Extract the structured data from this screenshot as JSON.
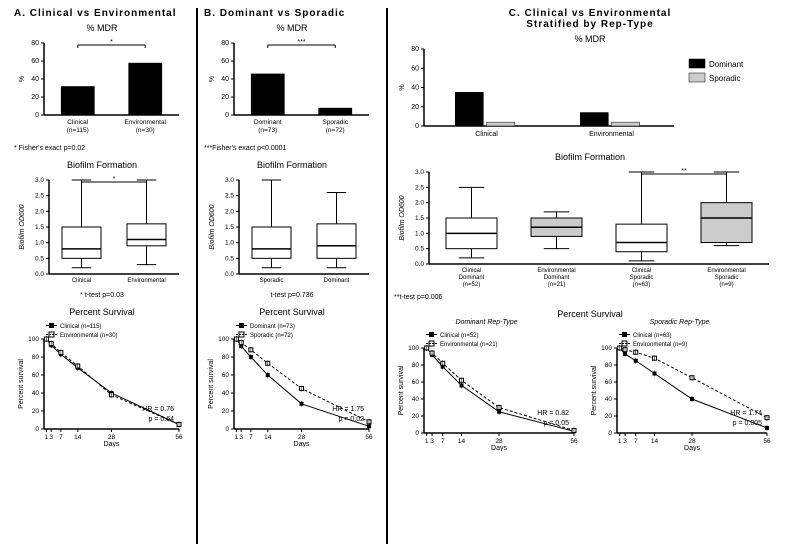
{
  "panelA": {
    "title": "A. Clinical vs Environmental",
    "mdr": {
      "title": "% MDR",
      "ylabel": "%",
      "ylim": [
        0,
        80
      ],
      "ytick": 20,
      "categories": [
        "Clinical\n(n=115)",
        "Environmental\n(n=30)"
      ],
      "values": [
        32,
        58
      ],
      "bar_color": "#000000",
      "sig_label": "*",
      "footnote": "* Fisher's exact p=0.02"
    },
    "biofilm": {
      "title": "Biofilm Formation",
      "ylabel": "Biofilm OD600",
      "ytick_labels": [
        "0.0",
        "0.5",
        "1.0",
        "1.5",
        "2.0",
        "2.5",
        "3.0"
      ],
      "ylim": [
        0,
        3
      ],
      "categories": [
        "Clinical",
        "Environmental"
      ],
      "boxes": [
        {
          "min": 0.2,
          "q1": 0.5,
          "med": 0.8,
          "q3": 1.5,
          "max": 3.0,
          "fill": "#ffffff"
        },
        {
          "min": 0.3,
          "q1": 0.9,
          "med": 1.1,
          "q3": 1.6,
          "max": 3.0,
          "fill": "#ffffff"
        }
      ],
      "sig_label": "*",
      "footnote": "* t-test p=0.03"
    },
    "survival": {
      "title": "Percent Survival",
      "xlabel": "Days",
      "ylabel": "Percent survival",
      "xticks": [
        1,
        3,
        7,
        14,
        28,
        56
      ],
      "yticks": [
        0,
        20,
        40,
        60,
        80,
        100
      ],
      "series": [
        {
          "name": "Clinical (n=115)",
          "marker": "filled",
          "dash": "solid",
          "pts": [
            [
              1,
              100
            ],
            [
              3,
              93
            ],
            [
              7,
              83
            ],
            [
              14,
              68
            ],
            [
              28,
              40
            ],
            [
              56,
              5
            ]
          ]
        },
        {
          "name": "Environmental (n=30)",
          "marker": "open",
          "dash": "dashed",
          "pts": [
            [
              1,
              100
            ],
            [
              3,
              95
            ],
            [
              7,
              85
            ],
            [
              14,
              70
            ],
            [
              28,
              38
            ],
            [
              56,
              5
            ]
          ]
        }
      ],
      "hr": "HR = 0.76",
      "p": "p = 0.64"
    }
  },
  "panelB": {
    "title": "B. Dominant vs Sporadic",
    "mdr": {
      "title": "% MDR",
      "ylabel": "%",
      "ylim": [
        0,
        80
      ],
      "ytick": 20,
      "categories": [
        "Dominant\n(n=73)",
        "Sporadic\n(n=72)"
      ],
      "values": [
        46,
        8
      ],
      "bar_color": "#000000",
      "sig_label": "***",
      "footnote": "***Fisher's exact p<0.0001"
    },
    "biofilm": {
      "title": "Biofilm Formation",
      "ylabel": "Biofilm OD600",
      "ytick_labels": [
        "0.0",
        "0.5",
        "1.0",
        "1.5",
        "2.0",
        "2.5",
        "3.0"
      ],
      "ylim": [
        0,
        3
      ],
      "categories": [
        "Sporadic",
        "Dominant"
      ],
      "boxes": [
        {
          "min": 0.2,
          "q1": 0.5,
          "med": 0.8,
          "q3": 1.5,
          "max": 3.0,
          "fill": "#ffffff"
        },
        {
          "min": 0.2,
          "q1": 0.5,
          "med": 0.9,
          "q3": 1.6,
          "max": 2.6,
          "fill": "#ffffff"
        }
      ],
      "footnote": "t-test p=0.736"
    },
    "survival": {
      "title": "Percent Survival",
      "xlabel": "Days",
      "ylabel": "Percent survival",
      "xticks": [
        1,
        3,
        7,
        14,
        28,
        56
      ],
      "yticks": [
        0,
        20,
        40,
        60,
        80,
        100
      ],
      "series": [
        {
          "name": "Dominant (n=73)",
          "marker": "filled",
          "dash": "solid",
          "pts": [
            [
              1,
              100
            ],
            [
              3,
              92
            ],
            [
              7,
              80
            ],
            [
              14,
              60
            ],
            [
              28,
              28
            ],
            [
              56,
              3
            ]
          ]
        },
        {
          "name": "Sporadic (n=72)",
          "marker": "open",
          "dash": "dashed",
          "pts": [
            [
              1,
              100
            ],
            [
              3,
              96
            ],
            [
              7,
              88
            ],
            [
              14,
              73
            ],
            [
              28,
              45
            ],
            [
              56,
              8
            ]
          ]
        }
      ],
      "hr": "HR = 1.75",
      "p": "p = 0.02"
    }
  },
  "panelC": {
    "title": "C. Clinical vs Environmental\nStratified by Rep-Type",
    "mdr": {
      "title": "% MDR",
      "ylabel": "%",
      "ylim": [
        0,
        80
      ],
      "ytick": 20,
      "groups": [
        "Clinical",
        "Environmental"
      ],
      "subgroups": [
        "Dominant",
        "Sporadic"
      ],
      "colors": {
        "Dominant": "#000000",
        "Sporadic": "#cccccc"
      },
      "values": {
        "Clinical": [
          35,
          4
        ],
        "Environmental": [
          14,
          4
        ]
      },
      "legend": [
        "Dominant",
        "Sporadic"
      ]
    },
    "biofilm": {
      "title": "Biofilm Formation",
      "ylabel": "Biofilm OD600",
      "ytick_labels": [
        "0.0",
        "0.5",
        "1.0",
        "1.5",
        "2.0",
        "2.5",
        "3.0"
      ],
      "ylim": [
        0,
        3
      ],
      "categories": [
        "Clinical\nDominant\n(n=52)",
        "Environmental\nDominant\n(n=21)",
        "Clinical\nSporadic\n(n=63)",
        "Environmental\nSporadic\n(n=9)"
      ],
      "boxes": [
        {
          "min": 0.2,
          "q1": 0.5,
          "med": 1.0,
          "q3": 1.5,
          "max": 2.5,
          "fill": "#ffffff"
        },
        {
          "min": 0.5,
          "q1": 0.9,
          "med": 1.2,
          "q3": 1.5,
          "max": 1.7,
          "fill": "#cccccc"
        },
        {
          "min": 0.1,
          "q1": 0.4,
          "med": 0.7,
          "q3": 1.3,
          "max": 3.0,
          "fill": "#ffffff"
        },
        {
          "min": 0.6,
          "q1": 0.7,
          "med": 1.5,
          "q3": 2.0,
          "max": 3.0,
          "fill": "#cccccc"
        }
      ],
      "sig_label": "**",
      "sig_span": [
        2,
        3
      ],
      "footnote": "**t-test p=0.006"
    },
    "survival_dom": {
      "title": "Dominant Rep-Type",
      "section_title": "Percent Survival",
      "xlabel": "Days",
      "ylabel": "Percent survival",
      "xticks": [
        1,
        3,
        7,
        14,
        28,
        56
      ],
      "yticks": [
        0,
        20,
        40,
        60,
        80,
        100
      ],
      "series": [
        {
          "name": "Clinical (n=52)",
          "marker": "filled",
          "dash": "solid",
          "pts": [
            [
              1,
              100
            ],
            [
              3,
              92
            ],
            [
              7,
              78
            ],
            [
              14,
              56
            ],
            [
              28,
              25
            ],
            [
              56,
              2
            ]
          ]
        },
        {
          "name": "Environmental (n=21)",
          "marker": "open",
          "dash": "dashed",
          "pts": [
            [
              1,
              100
            ],
            [
              3,
              94
            ],
            [
              7,
              82
            ],
            [
              14,
              62
            ],
            [
              28,
              30
            ],
            [
              56,
              3
            ]
          ]
        }
      ],
      "hr": "HR = 0.82",
      "p": "p = 0.05"
    },
    "survival_spo": {
      "title": "Sporadic Rep-Type",
      "xlabel": "Days",
      "ylabel": "Percent survival",
      "xticks": [
        1,
        3,
        7,
        14,
        28,
        56
      ],
      "yticks": [
        0,
        20,
        40,
        60,
        80,
        100
      ],
      "series": [
        {
          "name": "Clinical (n=63)",
          "marker": "filled",
          "dash": "solid",
          "pts": [
            [
              1,
              100
            ],
            [
              3,
              93
            ],
            [
              7,
              85
            ],
            [
              14,
              70
            ],
            [
              28,
              40
            ],
            [
              56,
              6
            ]
          ]
        },
        {
          "name": "Environmental (n=9)",
          "marker": "open",
          "dash": "dashed",
          "pts": [
            [
              1,
              100
            ],
            [
              3,
              98
            ],
            [
              7,
              95
            ],
            [
              14,
              88
            ],
            [
              28,
              65
            ],
            [
              56,
              18
            ]
          ]
        }
      ],
      "hr": "HR = 1.74",
      "p": "p = 0.005"
    }
  },
  "style": {
    "axis_color": "#000000",
    "font_size_title": 10,
    "font_size_tick": 7
  }
}
